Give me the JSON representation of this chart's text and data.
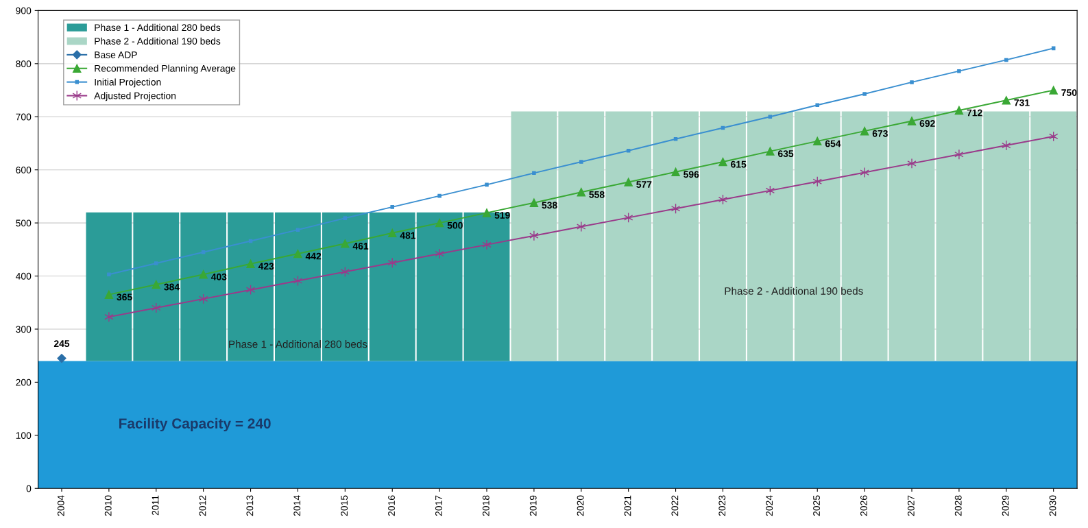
{
  "chart_data": {
    "type": "line",
    "categories": [
      "2004",
      "2010",
      "2011",
      "2012",
      "2013",
      "2014",
      "2015",
      "2016",
      "2017",
      "2018",
      "2019",
      "2020",
      "2021",
      "2022",
      "2023",
      "2024",
      "2025",
      "2026",
      "2027",
      "2028",
      "2029",
      "2030"
    ],
    "bands": [
      {
        "axis": "y",
        "from": 0,
        "to": 240,
        "color": "#1f9ad8",
        "label": "Facility Capacity = 240"
      }
    ],
    "series": [
      {
        "type": "bar",
        "name": "Phase 1 - Additional 280 beds",
        "color": "#2b9c98",
        "values": [
          null,
          280,
          280,
          280,
          280,
          280,
          280,
          280,
          280,
          280,
          null,
          null,
          null,
          null,
          null,
          null,
          null,
          null,
          null,
          null,
          null,
          null
        ],
        "base": [
          null,
          240,
          240,
          240,
          240,
          240,
          240,
          240,
          240,
          240,
          null,
          null,
          null,
          null,
          null,
          null,
          null,
          null,
          null,
          null,
          null,
          null
        ]
      },
      {
        "type": "bar",
        "name": "Phase 2 - Additional 190 beds",
        "color": "#aad6c6",
        "values": [
          null,
          null,
          null,
          null,
          null,
          null,
          null,
          null,
          null,
          null,
          470,
          470,
          470,
          470,
          470,
          470,
          470,
          470,
          470,
          470,
          470,
          470
        ],
        "base": [
          null,
          null,
          null,
          null,
          null,
          null,
          null,
          null,
          null,
          null,
          240,
          240,
          240,
          240,
          240,
          240,
          240,
          240,
          240,
          240,
          240,
          240
        ]
      },
      {
        "name": "Base ADP",
        "color": "#2a6fa8",
        "marker": "diamond",
        "values": [
          245,
          null,
          null,
          null,
          null,
          null,
          null,
          null,
          null,
          null,
          null,
          null,
          null,
          null,
          null,
          null,
          null,
          null,
          null,
          null,
          null,
          null
        ],
        "value_labels": [
          "245",
          null,
          null,
          null,
          null,
          null,
          null,
          null,
          null,
          null,
          null,
          null,
          null,
          null,
          null,
          null,
          null,
          null,
          null,
          null,
          null,
          null
        ]
      },
      {
        "name": "Recommended Planning Average",
        "color": "#3aa835",
        "marker": "triangle",
        "values": [
          null,
          365,
          384,
          403,
          423,
          442,
          461,
          481,
          500,
          519,
          538,
          558,
          577,
          596,
          615,
          635,
          654,
          673,
          692,
          712,
          731,
          750
        ],
        "value_labels": [
          null,
          "365",
          "384",
          "403",
          "423",
          "442",
          "461",
          "481",
          "500",
          "519",
          "538",
          "558",
          "577",
          "596",
          "615",
          "635",
          "654",
          "673",
          "692",
          "712",
          "731",
          "750"
        ]
      },
      {
        "name": "Initial Projection",
        "color": "#3a8fd0",
        "marker": "square",
        "values": [
          null,
          403,
          424,
          445,
          466,
          487,
          509,
          530,
          551,
          572,
          594,
          615,
          636,
          658,
          679,
          700,
          722,
          743,
          765,
          786,
          807,
          829
        ]
      },
      {
        "name": "Adjusted Projection",
        "color": "#9a3a8a",
        "marker": "cross",
        "values": [
          null,
          323,
          340,
          357,
          374,
          391,
          408,
          425,
          442,
          459,
          476,
          493,
          510,
          527,
          544,
          561,
          578,
          595,
          612,
          629,
          646,
          663
        ]
      }
    ],
    "ylim": [
      0,
      900
    ],
    "yticks": [
      0,
      100,
      200,
      300,
      400,
      500,
      600,
      700,
      800,
      900
    ],
    "grid": "y",
    "legend": "top left",
    "annotations": [
      "Phase 1 - Additional 280 beds",
      "Phase 2 - Additional 190 beds"
    ]
  }
}
